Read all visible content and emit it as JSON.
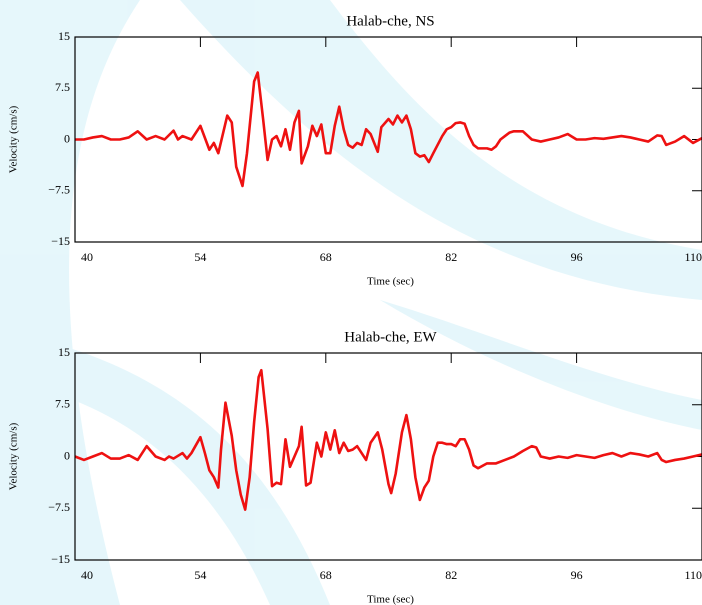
{
  "chart_data": [
    {
      "type": "line",
      "title": "Halab-che, NS",
      "xlabel": "Time (sec)",
      "ylabel": "Velocity (cm/s)",
      "color": "#ee1111",
      "xlim": [
        40,
        110
      ],
      "xticks": [
        40,
        54,
        68,
        82,
        96,
        110
      ],
      "ylim": [
        -15,
        15
      ],
      "yticks": [
        15,
        7.5,
        0,
        {
          "value": -7.5,
          "label": "−7.5"
        },
        {
          "value": -15,
          "label": "−15"
        }
      ],
      "x": [
        40,
        41,
        42,
        43,
        44,
        45,
        46,
        47,
        48,
        49,
        50,
        51,
        51.5,
        52,
        53,
        54,
        55,
        55.5,
        56,
        57,
        57.5,
        58,
        58.7,
        59.2,
        60,
        60.4,
        61,
        61.5,
        62,
        62.5,
        63,
        63.5,
        64,
        64.5,
        65,
        65.3,
        66,
        66.5,
        67,
        67.5,
        68,
        68.5,
        69,
        69.5,
        70,
        70.5,
        71,
        71.5,
        72,
        72.5,
        73,
        73.8,
        74.2,
        75,
        75.5,
        76,
        76.5,
        77,
        77.5,
        78,
        78.5,
        79,
        79.5,
        80,
        81,
        81.5,
        82,
        82.5,
        83,
        83.5,
        84,
        84.5,
        85,
        86,
        86.5,
        87,
        87.5,
        88,
        88.5,
        89,
        90,
        91,
        92,
        93,
        94,
        95,
        96,
        97,
        98,
        99,
        100,
        101,
        102,
        103,
        104,
        105,
        105.5,
        106,
        107,
        108,
        109,
        110
      ],
      "values": [
        0,
        0,
        0.3,
        0.5,
        0,
        0,
        0.3,
        1.2,
        0,
        0.5,
        0,
        1.3,
        0,
        0.5,
        0,
        2,
        -1.5,
        -0.5,
        -2,
        3.5,
        2.5,
        -4,
        -6.8,
        -2,
        8.5,
        9.8,
        3,
        -3,
        0,
        0.5,
        -1,
        1.5,
        -1.5,
        2.5,
        4.2,
        -3.5,
        -1,
        2,
        0.5,
        2.2,
        -2,
        -2,
        2,
        4.8,
        1.5,
        -0.8,
        -1.2,
        -0.5,
        -0.8,
        1.5,
        0.8,
        -1.8,
        1.8,
        3,
        2.2,
        3.5,
        2.5,
        3.5,
        1.5,
        -2,
        -2.5,
        -2.3,
        -3.3,
        -2,
        0.5,
        1.5,
        1.8,
        2.4,
        2.5,
        2.3,
        0.5,
        -0.8,
        -1.3,
        -1.3,
        -1.5,
        -1,
        0,
        0.5,
        1,
        1.2,
        1.2,
        0,
        -0.3,
        0,
        0.3,
        0.8,
        0,
        0,
        0.2,
        0.1,
        0.3,
        0.5,
        0.3,
        0,
        -0.3,
        0.6,
        0.5,
        -0.8,
        -0.3,
        0.5,
        -0.5,
        0.2
      ]
    },
    {
      "type": "line",
      "title": "Halab-che, EW",
      "xlabel": "Time (sec)",
      "ylabel": "Velocity (cm/s)",
      "color": "#ee1111",
      "xlim": [
        40,
        110
      ],
      "xticks": [
        40,
        54,
        68,
        82,
        96,
        110
      ],
      "ylim": [
        -15,
        15
      ],
      "yticks": [
        15,
        7.5,
        0,
        {
          "value": -7.5,
          "label": "−7.5"
        },
        {
          "value": -15,
          "label": "−15"
        }
      ],
      "x": [
        40,
        41,
        42,
        43,
        44,
        45,
        46,
        47,
        48,
        49,
        50,
        50.5,
        51,
        52,
        52.5,
        53,
        54,
        54.5,
        55,
        55.5,
        56,
        56.3,
        56.8,
        57.5,
        58,
        58.5,
        59,
        59.5,
        60,
        60.5,
        60.8,
        61.5,
        62,
        62.5,
        63,
        63.5,
        64,
        64.5,
        65,
        65.3,
        65.8,
        66.3,
        67,
        67.5,
        68,
        68.5,
        69,
        69.5,
        70,
        70.5,
        71,
        71.5,
        72,
        72.5,
        73,
        73.8,
        74.3,
        75,
        75.3,
        75.8,
        76.5,
        77,
        77.5,
        78,
        78.5,
        79,
        79.5,
        80,
        80.5,
        81,
        81.5,
        82,
        82.5,
        83,
        83.5,
        84,
        84.5,
        85,
        86,
        87,
        88,
        89,
        90,
        91,
        91.5,
        92,
        93,
        94,
        95,
        96,
        97,
        98,
        99,
        100,
        101,
        102,
        103,
        104,
        105,
        105.5,
        106,
        107,
        108,
        109,
        110
      ],
      "values": [
        0,
        -0.5,
        0,
        0.5,
        -0.3,
        -0.3,
        0.2,
        -0.5,
        1.5,
        0,
        -0.5,
        0,
        -0.3,
        0.5,
        -0.3,
        0.5,
        2.8,
        0.5,
        -2,
        -3,
        -4.5,
        1,
        7.8,
        3,
        -2,
        -5.5,
        -7.7,
        -3,
        5,
        11.5,
        12.5,
        4,
        -4.3,
        -3.8,
        -4,
        2.5,
        -1.5,
        0,
        1.5,
        4.3,
        -4.2,
        -3.8,
        2,
        0,
        3.5,
        1,
        3.8,
        0.5,
        2,
        0.8,
        1,
        1.5,
        0.5,
        -0.5,
        2,
        3.5,
        1,
        -4,
        -5.3,
        -2.5,
        3.5,
        6,
        2.5,
        -3,
        -6.3,
        -4.5,
        -3.5,
        0,
        2,
        2,
        1.8,
        1.8,
        1.5,
        2.5,
        2.5,
        1,
        -1.3,
        -1.7,
        -1,
        -1,
        -0.5,
        0,
        0.8,
        1.5,
        1.3,
        0,
        -0.3,
        0,
        -0.2,
        0.2,
        0,
        -0.2,
        0.2,
        0.5,
        0,
        0.5,
        0.3,
        0,
        0.5,
        -0.5,
        -0.8,
        -0.5,
        -0.3,
        0,
        0.3
      ]
    }
  ]
}
